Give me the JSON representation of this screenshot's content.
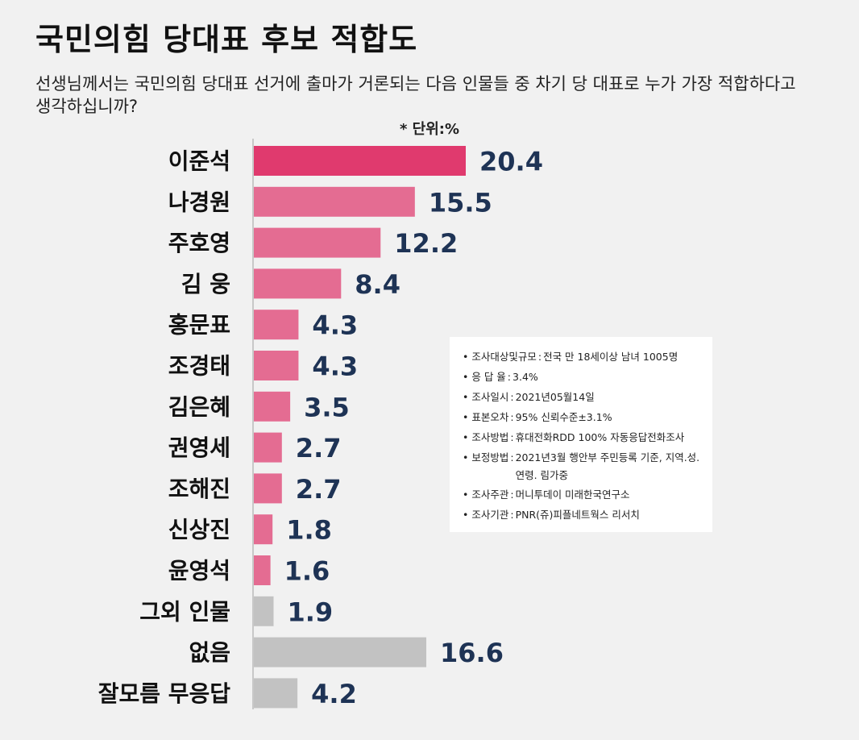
{
  "title": "국민의힘 당대표 후보 적합도",
  "question": "선생님께서는 국민의힘 당대표 선거에 출마가 거론되는 다음 인물들 중 차기 당 대표로 누가 가장 적합하다고 생각하십니까?",
  "unit": "* 단위:%",
  "colors": {
    "top": "#e03a6e",
    "candidate": "#e46c92",
    "other": "#c2c2c2",
    "value_text": "#1e3355"
  },
  "chart_data": {
    "type": "bar",
    "orientation": "horizontal",
    "title": "국민의힘 당대표 후보 적합도",
    "unit": "%",
    "categories": [
      "이준석",
      "나경원",
      "주호영",
      "김  웅",
      "홍문표",
      "조경태",
      "김은혜",
      "권영세",
      "조해진",
      "신상진",
      "윤영석",
      "그외 인물",
      "없음",
      "잘모름 무응답"
    ],
    "values": [
      20.4,
      15.5,
      12.2,
      8.4,
      4.3,
      4.3,
      3.5,
      2.7,
      2.7,
      1.8,
      1.6,
      1.9,
      16.6,
      4.2
    ],
    "value_labels": [
      "20.4",
      "15.5",
      "12.2",
      "8.4",
      "4.3",
      "4.3",
      "3.5",
      "2.7",
      "2.7",
      "1.8",
      "1.6",
      "1.9",
      "16.6",
      "4.2"
    ],
    "groups": [
      "top",
      "candidate",
      "candidate",
      "candidate",
      "candidate",
      "candidate",
      "candidate",
      "candidate",
      "candidate",
      "candidate",
      "candidate",
      "other",
      "other",
      "other"
    ],
    "xlim": [
      0,
      20.4
    ]
  },
  "info": [
    {
      "key": "• 조사대상및규모",
      "value": "전국 만 18세이상 남녀 1005명"
    },
    {
      "key": "• 응  답  율",
      "value": "3.4%"
    },
    {
      "key": "• 조사일시",
      "value": "2021년05월14일"
    },
    {
      "key": "• 표본오차",
      "value": "95% 신뢰수준±3.1%"
    },
    {
      "key": "• 조사방법",
      "value": "휴대전화RDD 100% 자동응답전화조사"
    },
    {
      "key": "• 보정방법",
      "value": "2021년3월 행안부 주민등록 기준, 지역.성.연령. 림가중"
    },
    {
      "key": "• 조사주관",
      "value": "머니투데이 미래한국연구소"
    },
    {
      "key": "• 조사기관",
      "value": "PNR(쥬)피플네트웍스 리서치"
    }
  ]
}
